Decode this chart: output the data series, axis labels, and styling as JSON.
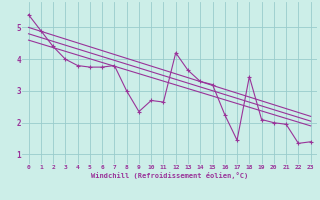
{
  "xlabel": "Windchill (Refroidissement éolien,°C)",
  "background_color": "#cceee8",
  "grid_color": "#99cccc",
  "line_color": "#993399",
  "xlim": [
    -0.5,
    23.5
  ],
  "ylim": [
    0.7,
    5.8
  ],
  "xticks": [
    0,
    1,
    2,
    3,
    4,
    5,
    6,
    7,
    8,
    9,
    10,
    11,
    12,
    13,
    14,
    15,
    16,
    17,
    18,
    19,
    20,
    21,
    22,
    23
  ],
  "yticks": [
    1,
    2,
    3,
    4,
    5
  ],
  "series1_x": [
    0,
    1,
    2,
    3,
    4,
    5,
    6,
    7,
    8,
    9,
    10,
    11,
    12,
    13,
    14,
    15,
    16,
    17,
    18,
    19,
    20,
    21,
    22,
    23
  ],
  "series1_y": [
    5.4,
    4.9,
    4.4,
    4.0,
    3.8,
    3.75,
    3.75,
    3.8,
    3.0,
    2.35,
    2.7,
    2.65,
    4.2,
    3.65,
    3.3,
    3.2,
    2.25,
    1.45,
    3.45,
    2.1,
    2.0,
    1.95,
    1.35,
    1.4
  ],
  "trend1_x": [
    0,
    23
  ],
  "trend1_y": [
    5.0,
    2.2
  ],
  "trend2_x": [
    0,
    23
  ],
  "trend2_y": [
    4.8,
    2.05
  ],
  "trend3_x": [
    0,
    23
  ],
  "trend3_y": [
    4.6,
    1.9
  ]
}
